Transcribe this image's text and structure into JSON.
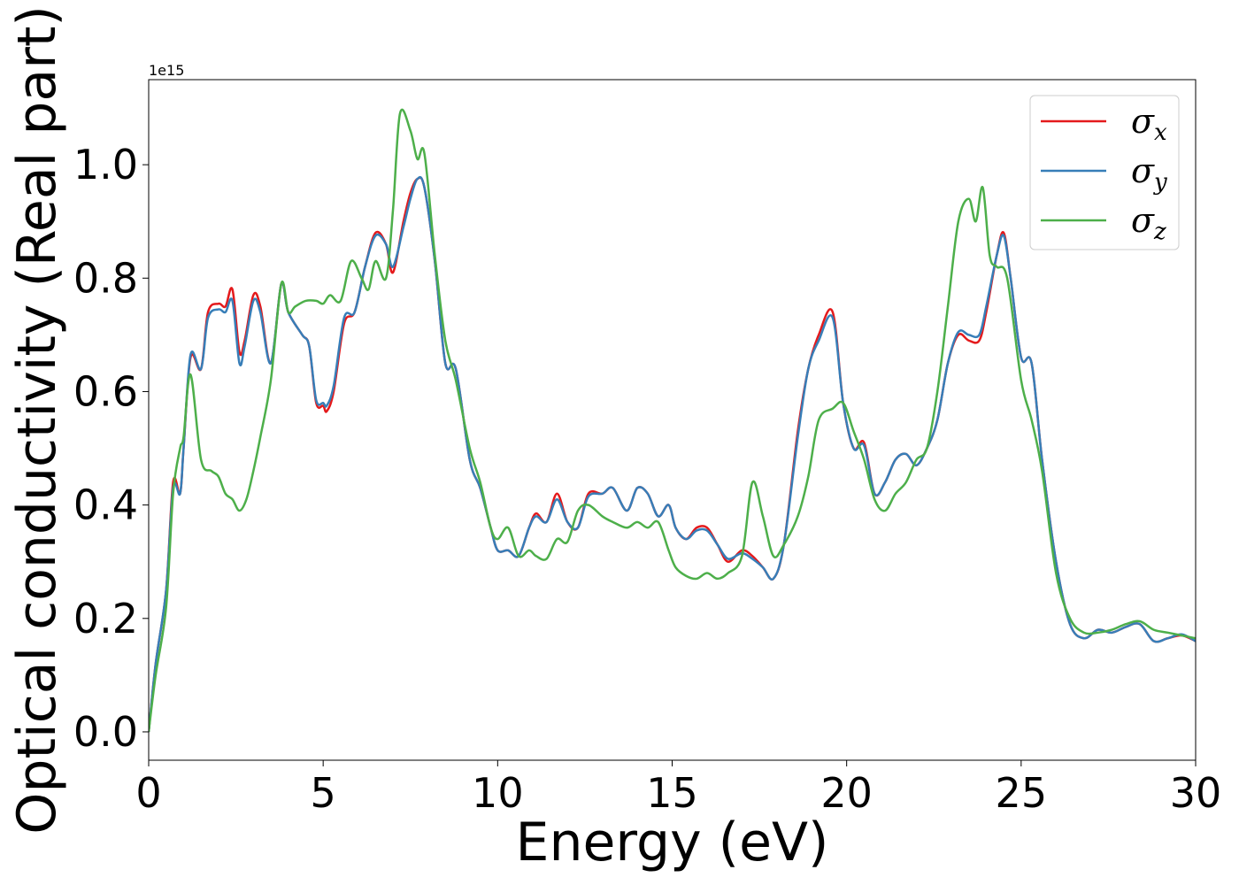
{
  "chart_data": {
    "type": "line",
    "title": "",
    "xlabel": "Energy (eV)",
    "ylabel": "Optical conductivity (Real part)",
    "y_offset_label": "1e15",
    "xlim": [
      0,
      30
    ],
    "ylim": [
      -0.05,
      1.15
    ],
    "x_ticks": [
      0,
      5,
      10,
      15,
      20,
      25,
      30
    ],
    "x_tick_labels": [
      "0",
      "5",
      "10",
      "15",
      "20",
      "25",
      "30"
    ],
    "y_ticks": [
      0.0,
      0.2,
      0.4,
      0.6,
      0.8,
      1.0
    ],
    "y_tick_labels": [
      "0.0",
      "0.2",
      "0.4",
      "0.6",
      "0.8",
      "1.0"
    ],
    "grid": false,
    "legend_position": "top-right",
    "series": [
      {
        "name": "σ",
        "subscript": "x",
        "color": "#e41a1c",
        "x": [
          0,
          0.2,
          0.5,
          0.7,
          0.9,
          1.0,
          1.2,
          1.5,
          1.7,
          2.0,
          2.2,
          2.4,
          2.6,
          2.75,
          3.0,
          3.2,
          3.5,
          3.8,
          4.0,
          4.4,
          4.6,
          4.8,
          5.0,
          5.1,
          5.3,
          5.6,
          5.9,
          6.2,
          6.5,
          6.8,
          7.0,
          7.3,
          7.5,
          7.7,
          7.9,
          8.2,
          8.5,
          8.8,
          9.2,
          9.5,
          9.8,
          10.0,
          10.3,
          10.6,
          10.9,
          11.1,
          11.4,
          11.7,
          12.0,
          12.3,
          12.6,
          13.0,
          13.3,
          13.7,
          14.0,
          14.3,
          14.6,
          14.9,
          15.1,
          15.4,
          15.7,
          16.0,
          16.3,
          16.6,
          17.0,
          17.3,
          17.6,
          17.9,
          18.2,
          18.6,
          18.9,
          19.2,
          19.6,
          19.9,
          20.2,
          20.5,
          20.8,
          21.1,
          21.4,
          21.7,
          22.0,
          22.3,
          22.6,
          22.9,
          23.2,
          23.5,
          23.8,
          24.0,
          24.3,
          24.5,
          24.7,
          25.0,
          25.3,
          25.6,
          26.0,
          26.4,
          26.8,
          27.2,
          27.6,
          28.0,
          28.4,
          28.8,
          29.2,
          29.6,
          30.0
        ],
        "y": [
          0.0,
          0.12,
          0.25,
          0.44,
          0.42,
          0.5,
          0.66,
          0.64,
          0.74,
          0.755,
          0.75,
          0.78,
          0.67,
          0.69,
          0.77,
          0.75,
          0.65,
          0.79,
          0.74,
          0.7,
          0.68,
          0.58,
          0.575,
          0.565,
          0.6,
          0.72,
          0.74,
          0.82,
          0.88,
          0.86,
          0.81,
          0.9,
          0.95,
          0.975,
          0.96,
          0.83,
          0.65,
          0.64,
          0.48,
          0.43,
          0.36,
          0.32,
          0.32,
          0.31,
          0.36,
          0.385,
          0.37,
          0.42,
          0.37,
          0.36,
          0.42,
          0.42,
          0.43,
          0.39,
          0.43,
          0.42,
          0.38,
          0.4,
          0.36,
          0.34,
          0.36,
          0.36,
          0.33,
          0.3,
          0.32,
          0.31,
          0.29,
          0.27,
          0.33,
          0.53,
          0.64,
          0.7,
          0.74,
          0.58,
          0.5,
          0.51,
          0.42,
          0.44,
          0.48,
          0.49,
          0.47,
          0.5,
          0.55,
          0.65,
          0.7,
          0.69,
          0.69,
          0.74,
          0.84,
          0.88,
          0.8,
          0.66,
          0.65,
          0.48,
          0.3,
          0.19,
          0.165,
          0.18,
          0.175,
          0.185,
          0.19,
          0.16,
          0.165,
          0.17,
          0.16
        ]
      },
      {
        "name": "σ",
        "subscript": "y",
        "color": "#377eb8",
        "x": [
          0,
          0.2,
          0.5,
          0.7,
          0.9,
          1.0,
          1.2,
          1.5,
          1.7,
          2.0,
          2.2,
          2.4,
          2.6,
          2.75,
          3.0,
          3.2,
          3.5,
          3.8,
          4.0,
          4.4,
          4.6,
          4.8,
          5.0,
          5.1,
          5.3,
          5.6,
          5.9,
          6.2,
          6.5,
          6.8,
          7.0,
          7.3,
          7.5,
          7.7,
          7.9,
          8.2,
          8.5,
          8.8,
          9.2,
          9.5,
          9.8,
          10.0,
          10.3,
          10.6,
          10.9,
          11.1,
          11.4,
          11.7,
          12.0,
          12.3,
          12.6,
          13.0,
          13.3,
          13.7,
          14.0,
          14.3,
          14.6,
          14.9,
          15.1,
          15.4,
          15.7,
          16.0,
          16.3,
          16.6,
          17.0,
          17.3,
          17.6,
          17.9,
          18.2,
          18.6,
          18.9,
          19.2,
          19.6,
          19.9,
          20.2,
          20.5,
          20.8,
          21.1,
          21.4,
          21.7,
          22.0,
          22.3,
          22.6,
          22.9,
          23.2,
          23.5,
          23.8,
          24.0,
          24.3,
          24.5,
          24.7,
          25.0,
          25.3,
          25.6,
          26.0,
          26.4,
          26.8,
          27.2,
          27.6,
          28.0,
          28.4,
          28.8,
          29.2,
          29.6,
          30.0
        ],
        "y": [
          0.0,
          0.12,
          0.25,
          0.43,
          0.42,
          0.5,
          0.665,
          0.64,
          0.73,
          0.745,
          0.74,
          0.76,
          0.65,
          0.68,
          0.76,
          0.74,
          0.65,
          0.79,
          0.74,
          0.7,
          0.68,
          0.585,
          0.58,
          0.575,
          0.61,
          0.73,
          0.74,
          0.82,
          0.875,
          0.86,
          0.82,
          0.89,
          0.94,
          0.975,
          0.96,
          0.83,
          0.65,
          0.64,
          0.48,
          0.43,
          0.36,
          0.32,
          0.32,
          0.31,
          0.36,
          0.38,
          0.37,
          0.41,
          0.37,
          0.36,
          0.415,
          0.42,
          0.43,
          0.39,
          0.43,
          0.42,
          0.38,
          0.4,
          0.36,
          0.34,
          0.355,
          0.355,
          0.33,
          0.305,
          0.315,
          0.305,
          0.29,
          0.27,
          0.33,
          0.52,
          0.64,
          0.69,
          0.73,
          0.58,
          0.5,
          0.505,
          0.42,
          0.44,
          0.48,
          0.49,
          0.47,
          0.5,
          0.55,
          0.65,
          0.705,
          0.7,
          0.7,
          0.75,
          0.84,
          0.875,
          0.8,
          0.66,
          0.65,
          0.48,
          0.3,
          0.19,
          0.165,
          0.18,
          0.175,
          0.185,
          0.19,
          0.16,
          0.165,
          0.172,
          0.16
        ]
      },
      {
        "name": "σ",
        "subscript": "z",
        "color": "#4daf4a",
        "x": [
          0,
          0.2,
          0.5,
          0.7,
          0.9,
          1.0,
          1.2,
          1.5,
          1.8,
          2.0,
          2.2,
          2.4,
          2.6,
          2.8,
          3.0,
          3.2,
          3.5,
          3.8,
          4.0,
          4.2,
          4.5,
          4.8,
          5.0,
          5.2,
          5.5,
          5.8,
          6.1,
          6.3,
          6.5,
          6.8,
          7.0,
          7.2,
          7.5,
          7.7,
          7.9,
          8.2,
          8.5,
          8.8,
          9.2,
          9.5,
          9.8,
          10.0,
          10.3,
          10.6,
          10.9,
          11.1,
          11.4,
          11.7,
          12.0,
          12.3,
          12.6,
          13.0,
          13.3,
          13.7,
          14.0,
          14.3,
          14.6,
          14.9,
          15.1,
          15.4,
          15.7,
          16.0,
          16.3,
          16.6,
          17.0,
          17.3,
          17.6,
          17.9,
          18.2,
          18.6,
          18.9,
          19.2,
          19.6,
          19.9,
          20.2,
          20.5,
          20.8,
          21.1,
          21.4,
          21.7,
          22.0,
          22.3,
          22.6,
          22.9,
          23.2,
          23.5,
          23.7,
          23.9,
          24.1,
          24.3,
          24.6,
          25.0,
          25.3,
          25.6,
          26.0,
          26.4,
          26.8,
          27.2,
          27.6,
          28.0,
          28.4,
          28.8,
          29.2,
          29.6,
          30.0
        ],
        "y": [
          0.0,
          0.1,
          0.22,
          0.42,
          0.5,
          0.52,
          0.63,
          0.48,
          0.46,
          0.45,
          0.42,
          0.41,
          0.39,
          0.41,
          0.46,
          0.52,
          0.62,
          0.79,
          0.74,
          0.75,
          0.76,
          0.76,
          0.755,
          0.77,
          0.76,
          0.83,
          0.8,
          0.78,
          0.83,
          0.8,
          0.92,
          1.09,
          1.06,
          1.01,
          1.02,
          0.84,
          0.69,
          0.62,
          0.5,
          0.44,
          0.36,
          0.34,
          0.36,
          0.31,
          0.32,
          0.31,
          0.305,
          0.34,
          0.335,
          0.39,
          0.4,
          0.38,
          0.37,
          0.36,
          0.37,
          0.36,
          0.37,
          0.32,
          0.29,
          0.275,
          0.27,
          0.28,
          0.27,
          0.28,
          0.31,
          0.44,
          0.38,
          0.31,
          0.33,
          0.38,
          0.45,
          0.55,
          0.57,
          0.58,
          0.53,
          0.48,
          0.41,
          0.39,
          0.42,
          0.44,
          0.48,
          0.5,
          0.6,
          0.75,
          0.9,
          0.94,
          0.9,
          0.96,
          0.84,
          0.82,
          0.8,
          0.62,
          0.55,
          0.46,
          0.28,
          0.2,
          0.175,
          0.175,
          0.18,
          0.19,
          0.195,
          0.18,
          0.175,
          0.17,
          0.165
        ]
      }
    ]
  }
}
